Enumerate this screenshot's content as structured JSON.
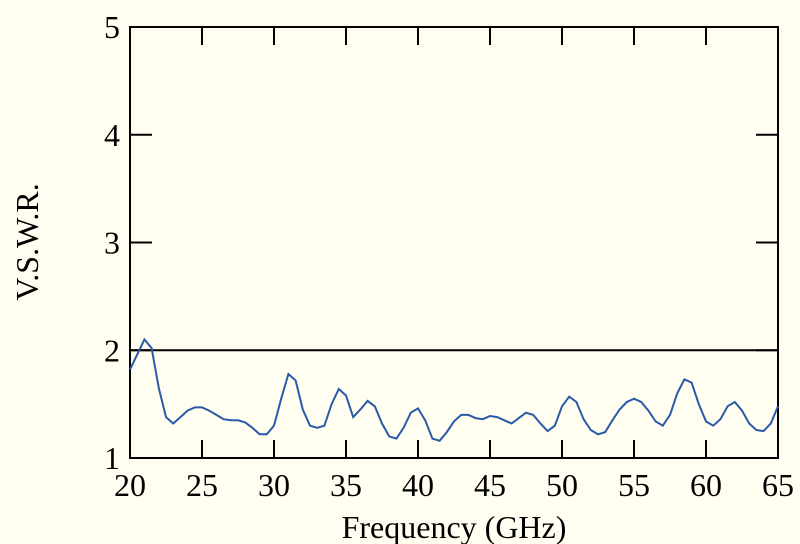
{
  "chart_data": {
    "type": "line",
    "title": "",
    "xlabel": "Frequency (GHz)",
    "ylabel": "V.S.W.R.",
    "xlim": [
      20,
      65
    ],
    "ylim": [
      1,
      5
    ],
    "xticks": [
      20,
      25,
      30,
      35,
      40,
      45,
      50,
      55,
      60,
      65
    ],
    "xtick_labels": [
      "20",
      "25",
      "30",
      "35",
      "40",
      "45",
      "50",
      "55",
      "60",
      "65"
    ],
    "yticks": [
      1,
      2,
      3,
      4,
      5
    ],
    "ytick_labels": [
      "1",
      "2",
      "3",
      "4",
      "5"
    ],
    "grid": false,
    "reference_lines": [
      {
        "axis": "y",
        "value": 2
      }
    ],
    "series": [
      {
        "color": "#2a5aa8",
        "x": [
          20,
          20.5,
          21,
          21.5,
          22,
          22.5,
          23,
          23.5,
          24,
          24.5,
          25,
          25.5,
          26,
          26.5,
          27,
          27.5,
          28,
          28.5,
          29,
          29.5,
          30,
          30.5,
          31,
          31.5,
          32,
          32.5,
          33,
          33.5,
          34,
          34.5,
          35,
          35.5,
          36,
          36.5,
          37,
          37.5,
          38,
          38.5,
          39,
          39.5,
          40,
          40.5,
          41,
          41.5,
          42,
          42.5,
          43,
          43.5,
          44,
          44.5,
          45,
          45.5,
          46,
          46.5,
          47,
          47.5,
          48,
          48.5,
          49,
          49.5,
          50,
          50.5,
          51,
          51.5,
          52,
          52.5,
          53,
          53.5,
          54,
          54.5,
          55,
          55.5,
          56,
          56.5,
          57,
          57.5,
          58,
          58.5,
          59,
          59.5,
          60,
          60.5,
          61,
          61.5,
          62,
          62.5,
          63,
          63.5,
          64,
          64.5,
          65
        ],
        "y": [
          1.82,
          1.96,
          2.1,
          2.02,
          1.65,
          1.38,
          1.32,
          1.38,
          1.44,
          1.47,
          1.47,
          1.44,
          1.4,
          1.36,
          1.35,
          1.35,
          1.33,
          1.28,
          1.22,
          1.22,
          1.3,
          1.55,
          1.78,
          1.72,
          1.45,
          1.3,
          1.28,
          1.3,
          1.5,
          1.64,
          1.58,
          1.38,
          1.45,
          1.53,
          1.48,
          1.32,
          1.2,
          1.18,
          1.28,
          1.42,
          1.46,
          1.35,
          1.18,
          1.16,
          1.24,
          1.34,
          1.4,
          1.4,
          1.37,
          1.36,
          1.39,
          1.38,
          1.35,
          1.32,
          1.37,
          1.42,
          1.4,
          1.32,
          1.25,
          1.3,
          1.48,
          1.57,
          1.52,
          1.36,
          1.26,
          1.22,
          1.24,
          1.35,
          1.45,
          1.52,
          1.55,
          1.52,
          1.44,
          1.34,
          1.3,
          1.4,
          1.6,
          1.73,
          1.7,
          1.5,
          1.34,
          1.3,
          1.36,
          1.48,
          1.52,
          1.44,
          1.32,
          1.26,
          1.25,
          1.32,
          1.48
        ]
      }
    ]
  }
}
